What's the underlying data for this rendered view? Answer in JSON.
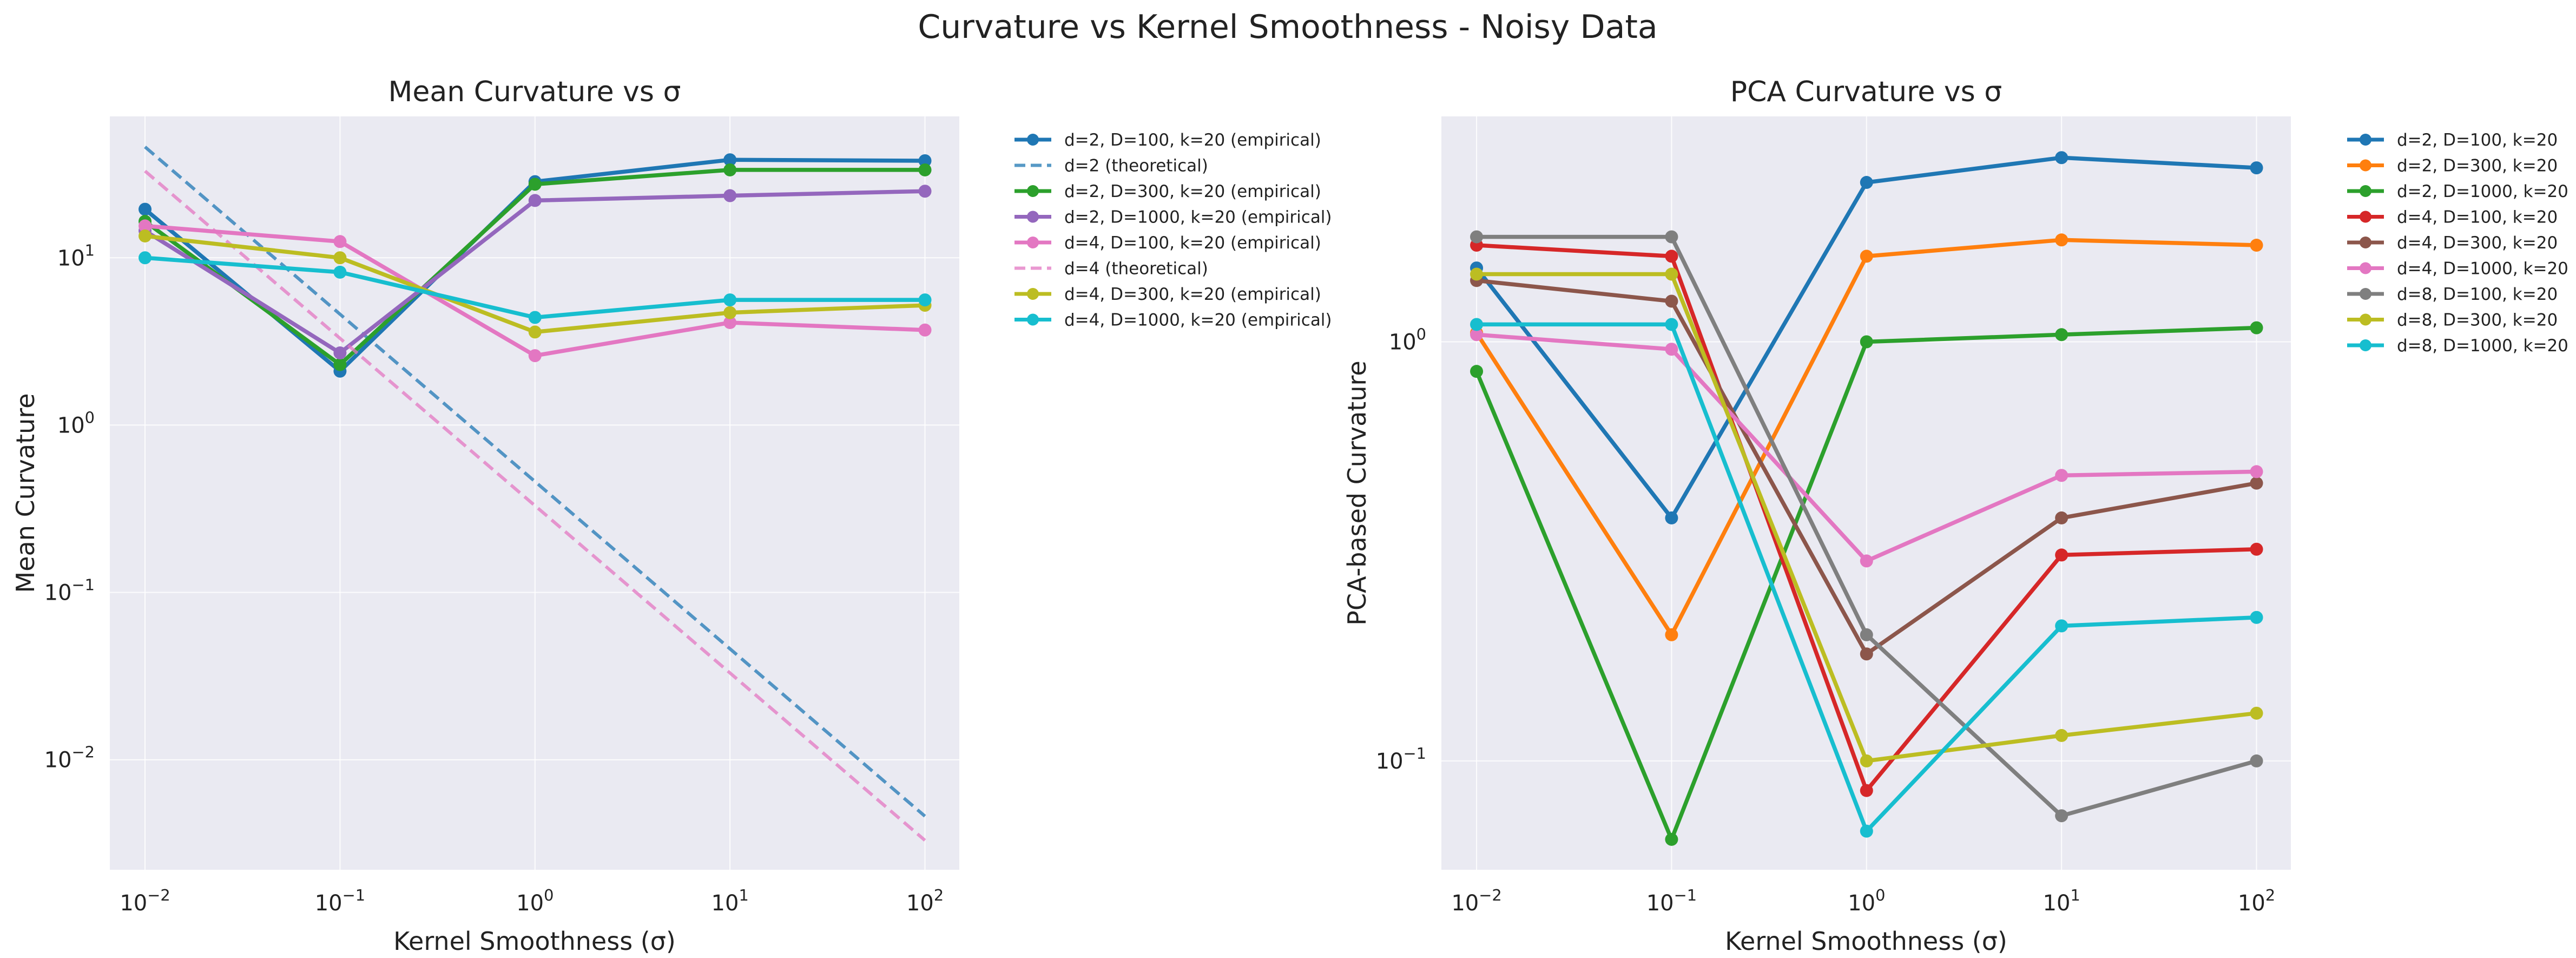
{
  "figure": {
    "title": "Curvature vs Kernel Smoothness - Noisy Data"
  },
  "chart_data": [
    {
      "type": "line",
      "title": "Mean Curvature vs σ",
      "xlabel": "Kernel Smoothness (σ)",
      "ylabel": "Mean Curvature",
      "xscale": "log",
      "yscale": "log",
      "xlim": [
        0.0066,
        150
      ],
      "ylim": [
        0.0022,
        70
      ],
      "x_ticks": [
        0.01,
        0.1,
        1,
        10,
        100
      ],
      "x_tick_labels": [
        {
          "base": "10",
          "exp": "−2"
        },
        {
          "base": "10",
          "exp": "−1"
        },
        {
          "base": "10",
          "exp": "0"
        },
        {
          "base": "10",
          "exp": "1"
        },
        {
          "base": "10",
          "exp": "2"
        }
      ],
      "y_ticks": [
        0.01,
        0.1,
        1,
        10
      ],
      "y_tick_labels": [
        {
          "base": "10",
          "exp": "−2"
        },
        {
          "base": "10",
          "exp": "−1"
        },
        {
          "base": "10",
          "exp": "0"
        },
        {
          "base": "10",
          "exp": "1"
        }
      ],
      "grid": true,
      "legend_position": "outside right",
      "x": [
        0.01,
        0.1,
        1,
        10,
        100
      ],
      "series": [
        {
          "name": "d=2, D=100, k=20 (empirical)",
          "color": "#1f77b4",
          "style": "solid",
          "markers": true,
          "values": [
            19.5,
            2.1,
            28.5,
            38.5,
            38.0
          ]
        },
        {
          "name": "d=2 (theoretical)",
          "color": "#1f77b4",
          "style": "dashed",
          "markers": false,
          "values": [
            46.0,
            4.6,
            0.46,
            0.046,
            0.0046
          ]
        },
        {
          "name": "d=2, D=300, k=20 (empirical)",
          "color": "#2ca02c",
          "style": "solid",
          "markers": true,
          "values": [
            16.5,
            2.3,
            27.5,
            33.5,
            33.5
          ]
        },
        {
          "name": "d=2, D=1000, k=20 (empirical)",
          "color": "#9467bd",
          "style": "solid",
          "markers": true,
          "values": [
            14.5,
            2.7,
            22.0,
            23.5,
            25.0
          ]
        },
        {
          "name": "d=4, D=100, k=20 (empirical)",
          "color": "#e377c2",
          "style": "solid",
          "markers": true,
          "values": [
            15.5,
            12.5,
            2.6,
            4.1,
            3.7
          ]
        },
        {
          "name": "d=4 (theoretical)",
          "color": "#e377c2",
          "style": "dashed",
          "markers": false,
          "values": [
            33.0,
            3.3,
            0.33,
            0.033,
            0.0033
          ]
        },
        {
          "name": "d=4, D=300, k=20 (empirical)",
          "color": "#bcbd22",
          "style": "solid",
          "markers": true,
          "values": [
            13.5,
            10.0,
            3.6,
            4.7,
            5.2
          ]
        },
        {
          "name": "d=4, D=1000, k=20 (empirical)",
          "color": "#17becf",
          "style": "solid",
          "markers": true,
          "values": [
            10.0,
            8.2,
            4.4,
            5.6,
            5.6
          ]
        }
      ]
    },
    {
      "type": "line",
      "title": "PCA Curvature vs σ",
      "xlabel": "Kernel Smoothness (σ)",
      "ylabel": "PCA-based Curvature",
      "xscale": "log",
      "yscale": "log",
      "xlim": [
        0.0066,
        150
      ],
      "ylim": [
        0.055,
        3.45
      ],
      "x_ticks": [
        0.01,
        0.1,
        1,
        10,
        100
      ],
      "x_tick_labels": [
        {
          "base": "10",
          "exp": "−2"
        },
        {
          "base": "10",
          "exp": "−1"
        },
        {
          "base": "10",
          "exp": "0"
        },
        {
          "base": "10",
          "exp": "1"
        },
        {
          "base": "10",
          "exp": "2"
        }
      ],
      "y_ticks": [
        0.1,
        1
      ],
      "y_tick_labels": [
        {
          "base": "10",
          "exp": "−1"
        },
        {
          "base": "10",
          "exp": "0"
        }
      ],
      "grid": true,
      "legend_position": "outside right",
      "x": [
        0.01,
        0.1,
        1,
        10,
        100
      ],
      "series": [
        {
          "name": "d=2, D=100, k=20",
          "color": "#1f77b4",
          "style": "solid",
          "markers": true,
          "values": [
            1.5,
            0.38,
            2.4,
            2.75,
            2.6
          ]
        },
        {
          "name": "d=2, D=300, k=20",
          "color": "#ff7f0e",
          "style": "solid",
          "markers": true,
          "values": [
            1.05,
            0.2,
            1.6,
            1.75,
            1.7
          ]
        },
        {
          "name": "d=2, D=1000, k=20",
          "color": "#2ca02c",
          "style": "solid",
          "markers": true,
          "values": [
            0.85,
            0.065,
            1.0,
            1.04,
            1.08
          ]
        },
        {
          "name": "d=4, D=100, k=20",
          "color": "#d62728",
          "style": "solid",
          "markers": true,
          "values": [
            1.7,
            1.6,
            0.085,
            0.31,
            0.32
          ]
        },
        {
          "name": "d=4, D=300, k=20",
          "color": "#8c564b",
          "style": "solid",
          "markers": true,
          "values": [
            1.4,
            1.25,
            0.18,
            0.38,
            0.46
          ]
        },
        {
          "name": "d=4, D=1000, k=20",
          "color": "#e377c2",
          "style": "solid",
          "markers": true,
          "values": [
            1.04,
            0.96,
            0.3,
            0.48,
            0.49
          ]
        },
        {
          "name": "d=8, D=100, k=20",
          "color": "#7f7f7f",
          "style": "solid",
          "markers": true,
          "values": [
            1.78,
            1.78,
            0.2,
            0.074,
            0.1
          ]
        },
        {
          "name": "d=8, D=300, k=20",
          "color": "#bcbd22",
          "style": "solid",
          "markers": true,
          "values": [
            1.45,
            1.45,
            0.1,
            0.115,
            0.13
          ]
        },
        {
          "name": "d=8, D=1000, k=20",
          "color": "#17becf",
          "style": "solid",
          "markers": true,
          "values": [
            1.1,
            1.1,
            0.068,
            0.21,
            0.22
          ]
        }
      ]
    }
  ]
}
